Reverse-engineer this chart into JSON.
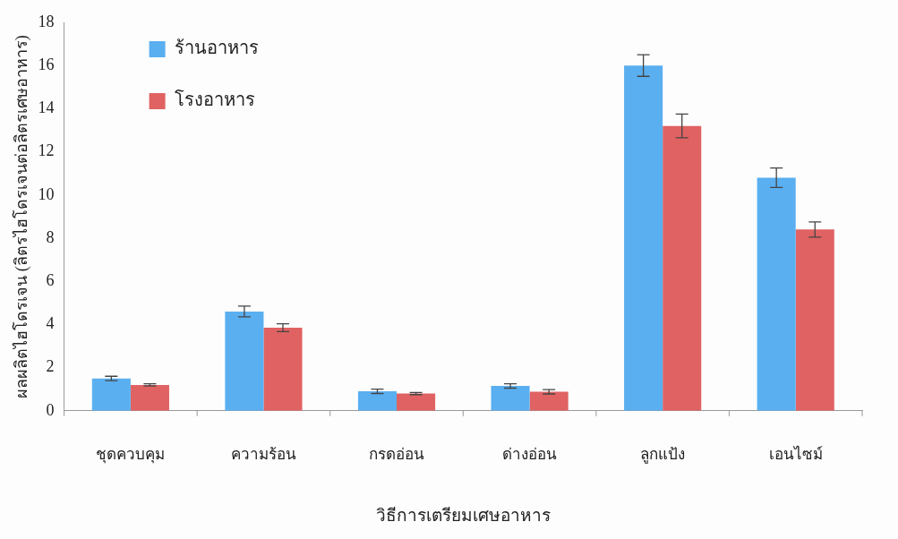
{
  "chart_data": {
    "type": "bar",
    "xlabel": "วิธีการเตรียมเศษอาหาร",
    "ylabel": "ผลผลิตไฮโดรเจน (ลิตรไฮโดรเจนต่อลิตรเศษอาหาร)",
    "categories": [
      "ชุดควบคุม",
      "ความร้อน",
      "กรดอ่อน",
      "ด่างอ่อน",
      "ลูกแป้ง",
      "เอนไซม์"
    ],
    "series": [
      {
        "name": "ร้านอาหาร",
        "color": "#5aaff0",
        "values": [
          1.5,
          4.6,
          0.9,
          1.15,
          16.0,
          10.8
        ],
        "errors": [
          0.1,
          0.25,
          0.1,
          0.1,
          0.5,
          0.45
        ]
      },
      {
        "name": "โรงอาหาร",
        "color": "#e06262",
        "values": [
          1.2,
          3.85,
          0.8,
          0.88,
          13.2,
          8.4
        ],
        "errors": [
          0.05,
          0.18,
          0.05,
          0.1,
          0.55,
          0.35
        ]
      }
    ],
    "ylim": [
      0,
      18
    ],
    "yticks": [
      0,
      2,
      4,
      6,
      8,
      10,
      12,
      14,
      16,
      18
    ],
    "grid": false,
    "legend": "top left"
  }
}
